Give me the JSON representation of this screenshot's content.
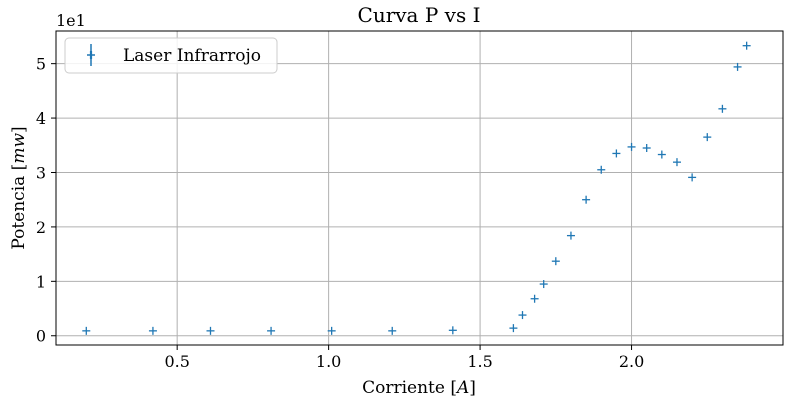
{
  "chart_data": {
    "type": "scatter",
    "title": "Curva P vs I",
    "xlabel_prefix": "Corriente [",
    "xlabel_unit": "A",
    "xlabel_suffix": "]",
    "ylabel_prefix": "Potencia [",
    "ylabel_unit": "mw",
    "ylabel_suffix": "]",
    "y_offset_label": "1e1",
    "xlim": [
      0.1,
      2.5
    ],
    "ylim": [
      -0.17,
      5.6
    ],
    "x_ticks": [
      0.5,
      1.0,
      1.5,
      2.0
    ],
    "x_tick_labels": [
      "0.5",
      "1.0",
      "1.5",
      "2.0"
    ],
    "y_ticks": [
      0,
      1,
      2,
      3,
      4,
      5
    ],
    "y_tick_labels": [
      "0",
      "1",
      "2",
      "3",
      "4",
      "5"
    ],
    "grid": true,
    "legend_position": "top-left",
    "marker": "+",
    "color": "#1f77b4",
    "series": [
      {
        "name": "Laser Infrarrojo",
        "x": [
          0.2,
          0.42,
          0.61,
          0.81,
          1.01,
          1.21,
          1.41,
          1.61,
          1.64,
          1.68,
          1.71,
          1.75,
          1.8,
          1.85,
          1.9,
          1.95,
          2.0,
          2.05,
          2.1,
          2.15,
          2.2,
          2.25,
          2.3,
          2.35,
          2.38
        ],
        "y": [
          0.09,
          0.09,
          0.09,
          0.09,
          0.09,
          0.09,
          0.1,
          0.14,
          0.38,
          0.68,
          0.95,
          1.37,
          1.84,
          2.5,
          3.05,
          3.35,
          3.47,
          3.45,
          3.33,
          3.19,
          2.91,
          3.65,
          4.17,
          4.94,
          5.33
        ]
      }
    ]
  }
}
